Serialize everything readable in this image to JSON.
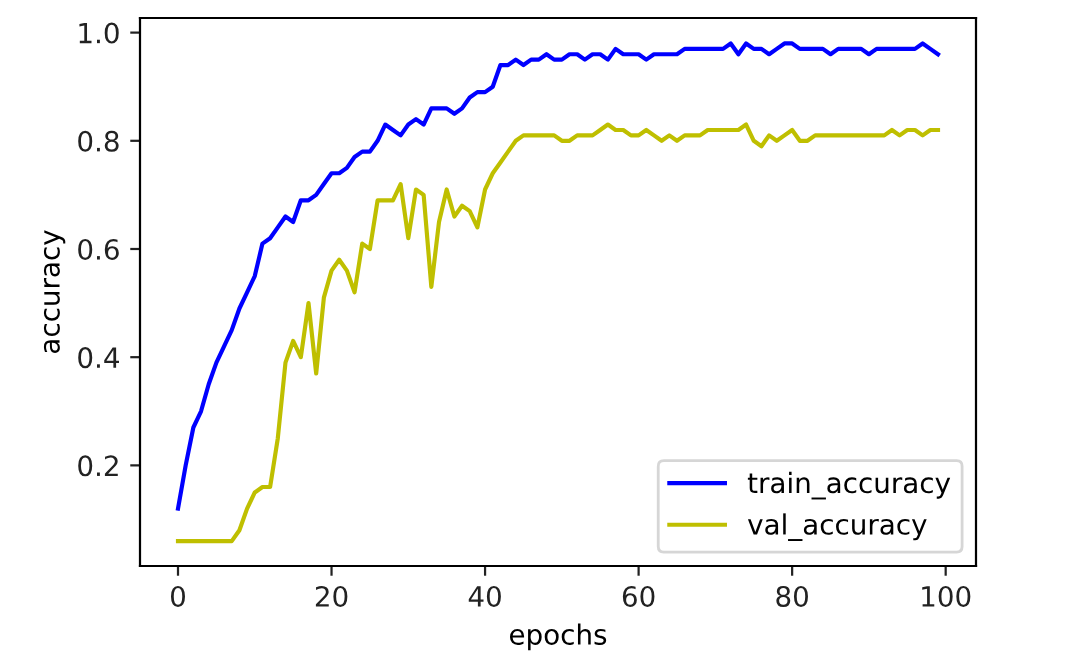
{
  "chart_data": {
    "type": "line",
    "xlabel": "epochs",
    "ylabel": "accuracy",
    "x": [
      0,
      1,
      2,
      3,
      4,
      5,
      6,
      7,
      8,
      9,
      10,
      11,
      12,
      13,
      14,
      15,
      16,
      17,
      18,
      19,
      20,
      21,
      22,
      23,
      24,
      25,
      26,
      27,
      28,
      29,
      30,
      31,
      32,
      33,
      34,
      35,
      36,
      37,
      38,
      39,
      40,
      41,
      42,
      43,
      44,
      45,
      46,
      47,
      48,
      49,
      50,
      51,
      52,
      53,
      54,
      55,
      56,
      57,
      58,
      59,
      60,
      61,
      62,
      63,
      64,
      65,
      66,
      67,
      68,
      69,
      70,
      71,
      72,
      73,
      74,
      75,
      76,
      77,
      78,
      79,
      80,
      81,
      82,
      83,
      84,
      85,
      86,
      87,
      88,
      89,
      90,
      91,
      92,
      93,
      94,
      95,
      96,
      97,
      98,
      99
    ],
    "series": [
      {
        "name": "train_accuracy",
        "color": "#0000ff",
        "values": [
          0.12,
          0.2,
          0.27,
          0.3,
          0.35,
          0.39,
          0.42,
          0.45,
          0.49,
          0.52,
          0.55,
          0.61,
          0.62,
          0.64,
          0.66,
          0.65,
          0.69,
          0.69,
          0.7,
          0.72,
          0.74,
          0.74,
          0.75,
          0.77,
          0.78,
          0.78,
          0.8,
          0.83,
          0.82,
          0.81,
          0.83,
          0.84,
          0.83,
          0.86,
          0.86,
          0.86,
          0.85,
          0.86,
          0.88,
          0.89,
          0.89,
          0.9,
          0.94,
          0.94,
          0.95,
          0.94,
          0.95,
          0.95,
          0.96,
          0.95,
          0.95,
          0.96,
          0.96,
          0.95,
          0.96,
          0.96,
          0.95,
          0.97,
          0.96,
          0.96,
          0.96,
          0.95,
          0.96,
          0.96,
          0.96,
          0.96,
          0.97,
          0.97,
          0.97,
          0.97,
          0.97,
          0.97,
          0.98,
          0.96,
          0.98,
          0.97,
          0.97,
          0.96,
          0.97,
          0.98,
          0.98,
          0.97,
          0.97,
          0.97,
          0.97,
          0.96,
          0.97,
          0.97,
          0.97,
          0.97,
          0.96,
          0.97,
          0.97,
          0.97,
          0.97,
          0.97,
          0.97,
          0.98,
          0.97,
          0.96
        ]
      },
      {
        "name": "val_accuracy",
        "color": "#bfbf00",
        "values": [
          0.06,
          0.06,
          0.06,
          0.06,
          0.06,
          0.06,
          0.06,
          0.06,
          0.08,
          0.12,
          0.15,
          0.16,
          0.16,
          0.25,
          0.39,
          0.43,
          0.4,
          0.5,
          0.37,
          0.51,
          0.56,
          0.58,
          0.56,
          0.52,
          0.61,
          0.6,
          0.69,
          0.69,
          0.69,
          0.72,
          0.62,
          0.71,
          0.7,
          0.53,
          0.65,
          0.71,
          0.66,
          0.68,
          0.67,
          0.64,
          0.71,
          0.74,
          0.76,
          0.78,
          0.8,
          0.81,
          0.81,
          0.81,
          0.81,
          0.81,
          0.8,
          0.8,
          0.81,
          0.81,
          0.81,
          0.82,
          0.83,
          0.82,
          0.82,
          0.81,
          0.81,
          0.82,
          0.81,
          0.8,
          0.81,
          0.8,
          0.81,
          0.81,
          0.81,
          0.82,
          0.82,
          0.82,
          0.82,
          0.82,
          0.83,
          0.8,
          0.79,
          0.81,
          0.8,
          0.81,
          0.82,
          0.8,
          0.8,
          0.81,
          0.81,
          0.81,
          0.81,
          0.81,
          0.81,
          0.81,
          0.81,
          0.81,
          0.81,
          0.82,
          0.81,
          0.82,
          0.82,
          0.81,
          0.82,
          0.82
        ]
      }
    ],
    "xlim": [
      -4.95,
      103.95
    ],
    "ylim": [
      0.014,
      1.027
    ],
    "xticks": [
      0,
      20,
      40,
      60,
      80,
      100
    ],
    "yticks": [
      {
        "value": 0.2,
        "label": "0.2"
      },
      {
        "value": 0.4,
        "label": "0.4"
      },
      {
        "value": 0.6,
        "label": "0.6"
      },
      {
        "value": 0.8,
        "label": "0.8"
      },
      {
        "value": 1.0,
        "label": "1.0"
      }
    ],
    "legend": "lower right",
    "grid": false
  }
}
